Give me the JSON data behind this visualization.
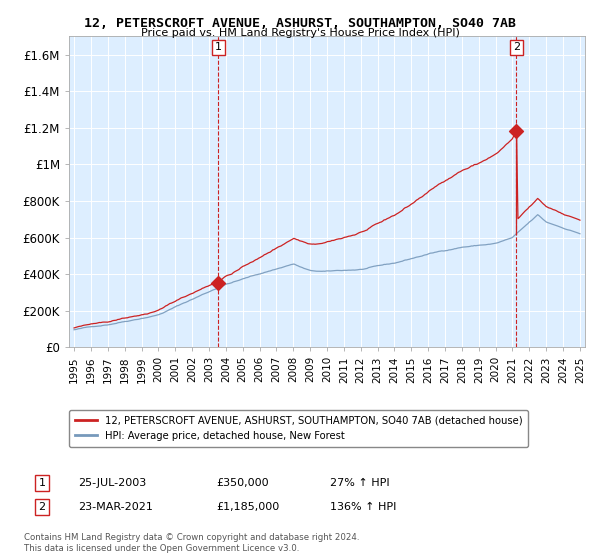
{
  "title": "12, PETERSCROFT AVENUE, ASHURST, SOUTHAMPTON, SO40 7AB",
  "subtitle": "Price paid vs. HM Land Registry's House Price Index (HPI)",
  "ylim": [
    0,
    1700000
  ],
  "yticks": [
    0,
    200000,
    400000,
    600000,
    800000,
    1000000,
    1200000,
    1400000,
    1600000
  ],
  "ytick_labels": [
    "£0",
    "£200K",
    "£400K",
    "£600K",
    "£800K",
    "£1M",
    "£1.2M",
    "£1.4M",
    "£1.6M"
  ],
  "hpi_color": "#7799bb",
  "price_color": "#cc2222",
  "vline_color": "#cc2222",
  "background_color": "#ffffff",
  "plot_bg_color": "#ddeeff",
  "grid_color": "#ffffff",
  "legend_label_price": "12, PETERSCROFT AVENUE, ASHURST, SOUTHAMPTON, SO40 7AB (detached house)",
  "legend_label_hpi": "HPI: Average price, detached house, New Forest",
  "annotation1_date": "25-JUL-2003",
  "annotation1_price": "£350,000",
  "annotation1_hpi": "27% ↑ HPI",
  "annotation2_date": "23-MAR-2021",
  "annotation2_price": "£1,185,000",
  "annotation2_hpi": "136% ↑ HPI",
  "footnote": "Contains HM Land Registry data © Crown copyright and database right 2024.\nThis data is licensed under the Open Government Licence v3.0.",
  "sale1_year": 2003.56,
  "sale1_price": 350000,
  "sale2_year": 2021.22,
  "sale2_price": 1185000
}
